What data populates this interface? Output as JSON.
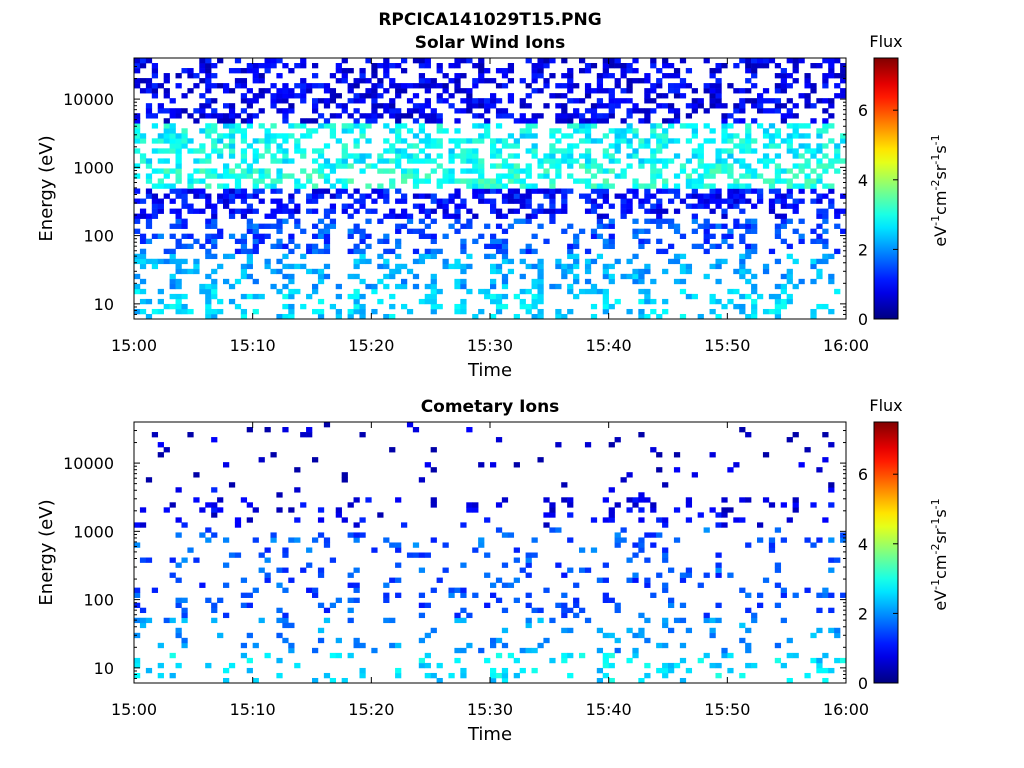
{
  "figure": {
    "filename": "RPCICA141029T15.PNG"
  },
  "chart_data": [
    {
      "type": "heatmap",
      "title": "Solar Wind Ions",
      "xlabel": "Time",
      "ylabel": "Energy (eV)",
      "x_ticks": [
        "15:00",
        "15:10",
        "15:20",
        "15:30",
        "15:40",
        "15:50",
        "16:00"
      ],
      "x_range": [
        "15:00",
        "16:00"
      ],
      "y_scale": "log",
      "y_ticks": [
        "10",
        "100",
        "1000",
        "10000"
      ],
      "y_range_eV": [
        6,
        40000
      ],
      "colorbar": {
        "title": "Flux",
        "label_parts": [
          "eV",
          "-1",
          "cm",
          "-2",
          "sr",
          "-1",
          "s",
          "-1"
        ],
        "ticks": [
          "0",
          "2",
          "4",
          "6"
        ],
        "range": [
          0,
          7.5
        ],
        "colormap": "jet"
      },
      "description_bands": [
        {
          "energy_eV": 10,
          "typical_flux": 2.5
        },
        {
          "energy_eV": 30,
          "typical_flux": 2.2
        },
        {
          "energy_eV": 100,
          "typical_flux": 1.5
        },
        {
          "energy_eV": 300,
          "typical_flux": 1.0
        },
        {
          "energy_eV": 700,
          "typical_flux": 3.0
        },
        {
          "energy_eV": 1800,
          "typical_flux": 2.8
        },
        {
          "energy_eV": 10000,
          "typical_flux": 0.8
        }
      ]
    },
    {
      "type": "heatmap",
      "title": "Cometary Ions",
      "xlabel": "Time",
      "ylabel": "Energy (eV)",
      "x_ticks": [
        "15:00",
        "15:10",
        "15:20",
        "15:30",
        "15:40",
        "15:50",
        "16:00"
      ],
      "x_range": [
        "15:00",
        "16:00"
      ],
      "y_scale": "log",
      "y_ticks": [
        "10",
        "100",
        "1000",
        "10000"
      ],
      "y_range_eV": [
        6,
        40000
      ],
      "colorbar": {
        "title": "Flux",
        "label_parts": [
          "eV",
          "-1",
          "cm",
          "-2",
          "sr",
          "-1",
          "s",
          "-1"
        ],
        "ticks": [
          "0",
          "2",
          "4",
          "6"
        ],
        "range": [
          0,
          7.5
        ],
        "colormap": "jet"
      },
      "description_bands": [
        {
          "energy_eV": 10,
          "typical_flux": 2.6
        },
        {
          "energy_eV": 30,
          "typical_flux": 2.0
        },
        {
          "energy_eV": 100,
          "typical_flux": 1.5
        },
        {
          "energy_eV": 700,
          "typical_flux": 1.6
        },
        {
          "energy_eV": 1800,
          "typical_flux": 0.8
        },
        {
          "energy_eV": 10000,
          "typical_flux": 0.5
        }
      ]
    }
  ]
}
